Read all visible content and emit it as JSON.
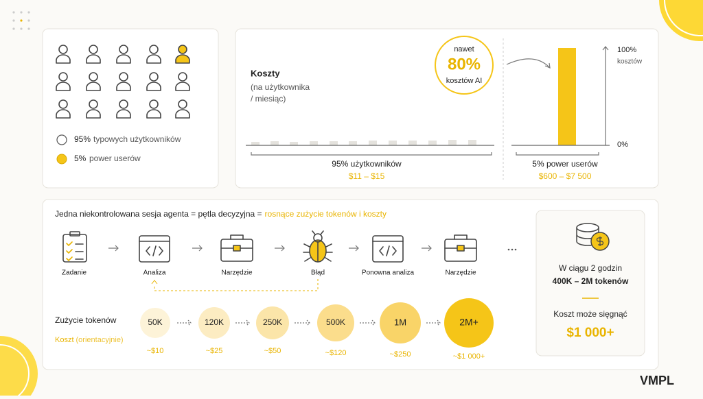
{
  "users_panel": {
    "legend": [
      {
        "pct": "95%",
        "label": "typowych użytkowników"
      },
      {
        "pct": "5%",
        "label": "power userów"
      }
    ]
  },
  "cost_panel": {
    "title": "Koszty",
    "subtitle_1": "(na użytkownika",
    "subtitle_2": "/ miesiąc)",
    "callout": {
      "top": "nawet",
      "value": "80%",
      "bottom": "kosztów AI"
    },
    "axis": {
      "top": "100%",
      "top_unit": "kosztów",
      "bottom": "0%"
    },
    "groups": [
      {
        "label": "95% użytkowników",
        "range": "$11 – $15"
      },
      {
        "label": "5% power userów",
        "range": "$600 – $7 500"
      }
    ]
  },
  "session_panel": {
    "headline": "Jedna niekontrolowana sesja agenta = pętla decyzyjna =",
    "headline_highlight": "rosnące zużycie tokenów i koszty",
    "steps": [
      "Zadanie",
      "Analiza",
      "Narzędzie",
      "Błąd",
      "Ponowna analiza",
      "Narzędzie"
    ],
    "token_label": "Zużycie tokenów",
    "cost_label": "Koszt",
    "cost_note": "(orientacyjnie)",
    "stages": [
      {
        "tokens": "50K",
        "cost": "~$10"
      },
      {
        "tokens": "120K",
        "cost": "~$25"
      },
      {
        "tokens": "250K",
        "cost": "~$50"
      },
      {
        "tokens": "500K",
        "cost": "~$120"
      },
      {
        "tokens": "1M",
        "cost": "~$250"
      },
      {
        "tokens": "2M+",
        "cost": "~$1 000+"
      }
    ]
  },
  "summary": {
    "line1": "W ciągu 2 godzin",
    "line2": "400K – 2M tokenów",
    "line3": "Koszt może sięgnąć",
    "amount": "$1 000+"
  },
  "logo": "VMPL"
}
